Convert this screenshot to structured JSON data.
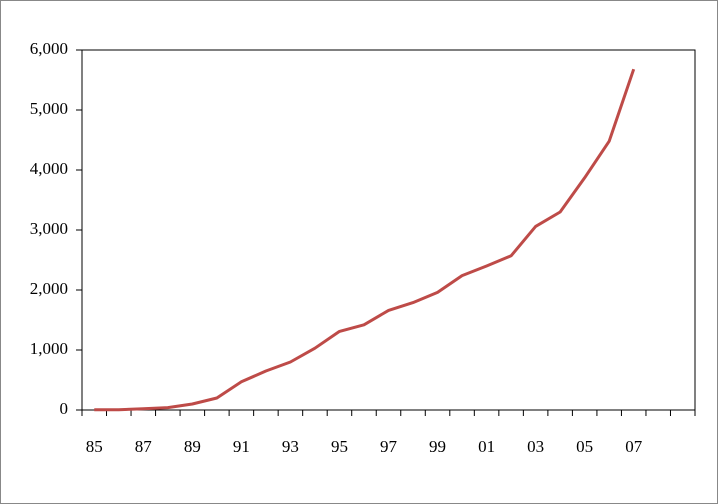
{
  "chart_data": {
    "type": "line",
    "categories": [
      "85",
      null,
      "87",
      null,
      "89",
      null,
      "91",
      null,
      "93",
      null,
      "95",
      null,
      "97",
      null,
      "99",
      null,
      "01",
      null,
      "03",
      null,
      "05",
      null,
      "07",
      null,
      null
    ],
    "series": [
      {
        "color": "#be4b48",
        "values": [
          5,
          5,
          20,
          40,
          100,
          200,
          470,
          650,
          800,
          1030,
          1310,
          1420,
          1660,
          1790,
          1960,
          2240,
          2400,
          2570,
          3060,
          3300,
          3870,
          4480,
          5680,
          null,
          null
        ]
      }
    ],
    "ylim": [
      0,
      6000
    ],
    "yticks": [
      0,
      {
        "value": 1000,
        "label": "1,000"
      },
      {
        "value": 2000,
        "label": "2,000"
      },
      {
        "value": 3000,
        "label": "3,000"
      },
      {
        "value": 4000,
        "label": "4,000"
      },
      {
        "value": 5000,
        "label": "5,000"
      },
      {
        "value": 6000,
        "label": "6,000"
      }
    ],
    "grid": false
  }
}
